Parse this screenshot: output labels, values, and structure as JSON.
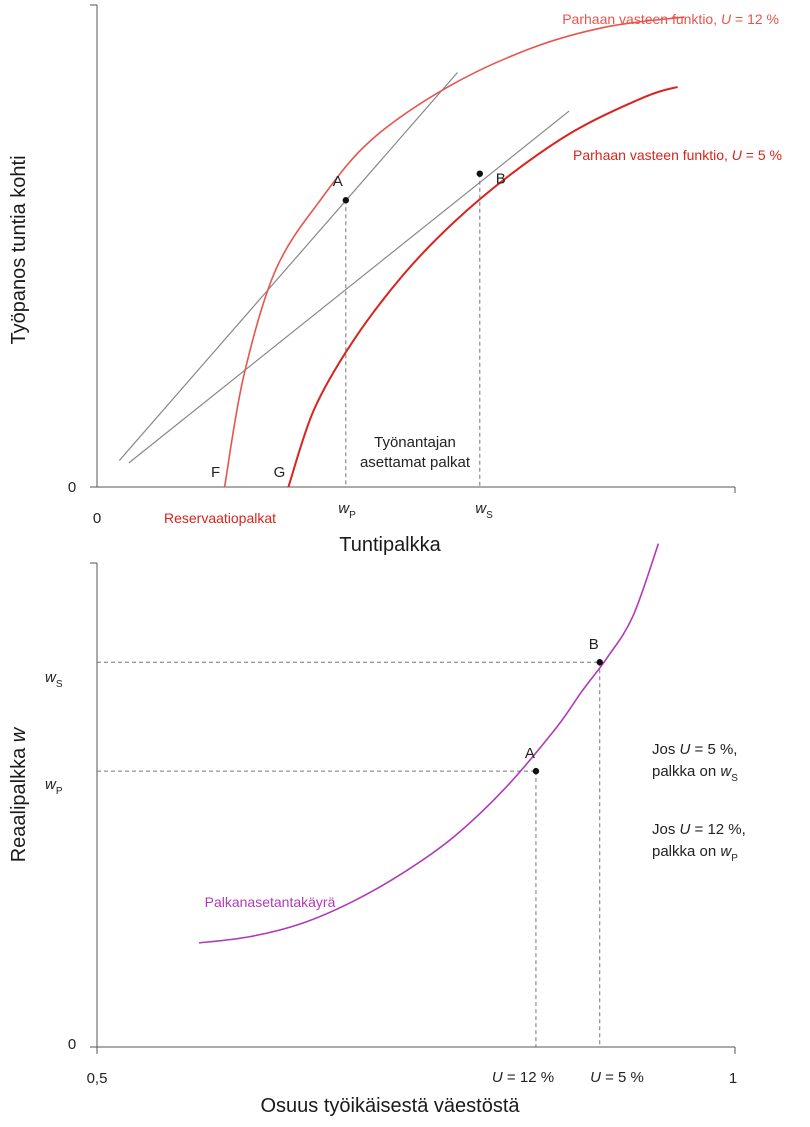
{
  "chart_data": [
    {
      "type": "line",
      "title": "",
      "xlabel": "Tuntipalkka",
      "ylabel": "Työpanos tuntia kohti",
      "x_origin_label": "0",
      "y_origin_label": "0",
      "xlim": [
        0,
        10
      ],
      "ylim": [
        0,
        10
      ],
      "series": [
        {
          "name": "Parhaan vasteen funktio, U = 12 %",
          "name_parts": {
            "prefix": "Parhaan vasteen funktio, ",
            "var": "U",
            "suffix": " = 12 %"
          },
          "color": "#e8544c",
          "x": [
            2.0,
            2.3,
            2.8,
            3.5,
            4.3,
            5.5,
            6.8,
            8.0,
            9.2
          ],
          "y": [
            0.0,
            2.3,
            4.5,
            5.95,
            7.2,
            8.3,
            9.1,
            9.55,
            9.75
          ]
        },
        {
          "name": "Parhaan vasteen funktio, U = 5 %",
          "name_parts": {
            "prefix": "Parhaan vasteen funktio, ",
            "var": "U",
            "suffix": " = 5 %"
          },
          "color": "#d8241c",
          "x": [
            3.0,
            3.4,
            4.0,
            4.8,
            5.6,
            6.5,
            7.5,
            8.6,
            9.1
          ],
          "y": [
            0.0,
            1.6,
            3.0,
            4.4,
            5.5,
            6.5,
            7.4,
            8.1,
            8.3
          ]
        }
      ],
      "tangent_lines": [
        {
          "through": "A",
          "x": [
            0.35,
            5.65
          ],
          "y": [
            0.55,
            8.6
          ],
          "color": "#888888"
        },
        {
          "through": "B",
          "x": [
            0.5,
            7.4
          ],
          "y": [
            0.5,
            7.8
          ],
          "color": "#888888"
        }
      ],
      "points": [
        {
          "label": "A",
          "x": 3.9,
          "y": 5.95
        },
        {
          "label": "B",
          "x": 6.0,
          "y": 6.5
        }
      ],
      "x_markers": [
        {
          "label": "F",
          "x": 2.0
        },
        {
          "label": "G",
          "x": 3.0
        }
      ],
      "x_ticks": [
        {
          "var": "w",
          "sub": "P",
          "x": 3.9
        },
        {
          "var": "w",
          "sub": "S",
          "x": 6.0
        }
      ],
      "annotations": {
        "reservation_wages": "Reservaatiopalkat",
        "employer_wages_line1": "Työnantajan",
        "employer_wages_line2": "asettamat palkat"
      }
    },
    {
      "type": "line",
      "title": "",
      "xlabel": "Osuus työikäisestä väestöstä",
      "ylabel_text": "Reaalipalkka ",
      "ylabel_var": "w",
      "xlim": [
        0.5,
        1.0
      ],
      "ylim": [
        0,
        10
      ],
      "x_tick_labels": [
        "0,5",
        "1"
      ],
      "y_origin_label": "0",
      "series": [
        {
          "name": "Palkanasetantakäyrä",
          "color": "#b03ab8",
          "x": [
            0.58,
            0.62,
            0.66,
            0.7,
            0.74,
            0.78,
            0.82,
            0.86,
            0.88,
            0.9,
            0.92,
            0.94
          ],
          "y": [
            2.15,
            2.28,
            2.55,
            3.0,
            3.6,
            4.35,
            5.35,
            6.6,
            7.35,
            8.05,
            8.9,
            10.4
          ]
        }
      ],
      "points": [
        {
          "label": "A",
          "x": 0.844,
          "y": 5.7
        },
        {
          "label": "B",
          "x": 0.894,
          "y": 7.95
        }
      ],
      "x_ticks": [
        {
          "var": "U",
          "text": " = 12 %",
          "x": 0.844
        },
        {
          "var": "U",
          "text": " = 5 %",
          "x": 0.894
        }
      ],
      "y_ticks": [
        {
          "var": "w",
          "sub": "P",
          "y": 5.7
        },
        {
          "var": "w",
          "sub": "S",
          "y": 7.95
        }
      ],
      "annotations": {
        "note1_line1_pre": "Jos ",
        "note1_var": "U",
        "note1_line1_post": " = 5 %,",
        "note1_line2_pre": "palkka on ",
        "note1_line2_var": "w",
        "note1_line2_sub": "S",
        "note2_line1_pre": "Jos ",
        "note2_var": "U",
        "note2_line1_post": " = 12 %,",
        "note2_line2_pre": "palkka on ",
        "note2_line2_var": "w",
        "note2_line2_sub": "P"
      }
    }
  ]
}
